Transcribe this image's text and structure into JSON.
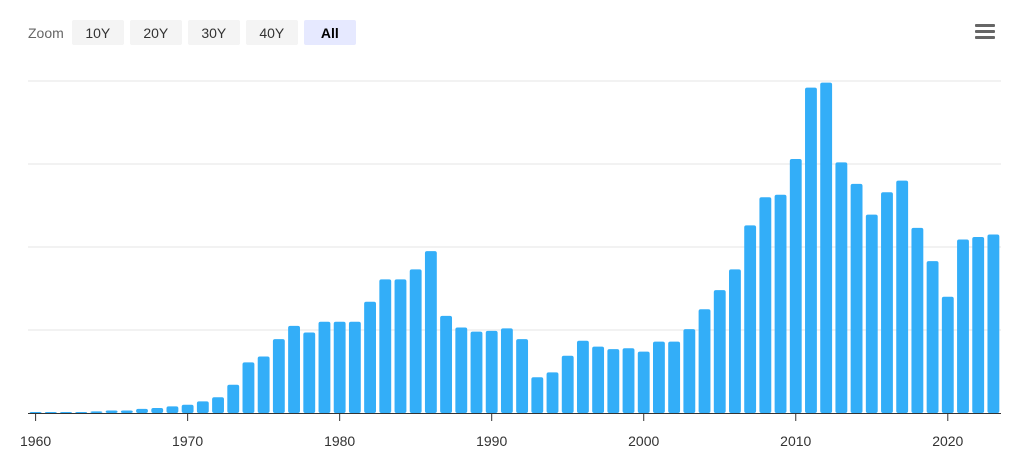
{
  "toolbar": {
    "zoom_label": "Zoom",
    "buttons": [
      {
        "label": "10Y",
        "active": false
      },
      {
        "label": "20Y",
        "active": false
      },
      {
        "label": "30Y",
        "active": false
      },
      {
        "label": "40Y",
        "active": false
      },
      {
        "label": "All",
        "active": true
      }
    ],
    "menu_icon": "hamburger-menu-icon"
  },
  "chart_data": {
    "type": "bar",
    "title": "",
    "xlabel": "",
    "ylabel": "",
    "x_ticks": [
      1960,
      1970,
      1980,
      1990,
      2000,
      2010,
      2020
    ],
    "x_range": [
      1959.5,
      2023.5
    ],
    "y_range": [
      0,
      4
    ],
    "grid": "horizontal",
    "gridlines": [
      1,
      2,
      3,
      4
    ],
    "bar_color": "#33aef8",
    "categories": [
      1960,
      1961,
      1962,
      1963,
      1964,
      1965,
      1966,
      1967,
      1968,
      1969,
      1970,
      1971,
      1972,
      1973,
      1974,
      1975,
      1976,
      1977,
      1978,
      1979,
      1980,
      1981,
      1982,
      1983,
      1984,
      1985,
      1986,
      1987,
      1988,
      1989,
      1990,
      1991,
      1992,
      1993,
      1994,
      1995,
      1996,
      1997,
      1998,
      1999,
      2000,
      2001,
      2002,
      2003,
      2004,
      2005,
      2006,
      2007,
      2008,
      2009,
      2010,
      2011,
      2012,
      2013,
      2014,
      2015,
      2016,
      2017,
      2018,
      2019,
      2020,
      2021,
      2022,
      2023
    ],
    "values": [
      0.01,
      0.01,
      0.01,
      0.01,
      0.02,
      0.03,
      0.03,
      0.05,
      0.06,
      0.08,
      0.1,
      0.14,
      0.19,
      0.34,
      0.61,
      0.68,
      0.89,
      1.05,
      0.97,
      1.1,
      1.1,
      1.1,
      1.34,
      1.61,
      1.61,
      1.73,
      1.95,
      1.17,
      1.03,
      0.98,
      0.99,
      1.02,
      0.89,
      0.43,
      0.49,
      0.69,
      0.87,
      0.8,
      0.77,
      0.78,
      0.74,
      0.86,
      0.86,
      1.01,
      1.25,
      1.48,
      1.73,
      2.26,
      2.6,
      2.63,
      3.06,
      3.92,
      3.98,
      3.02,
      2.76,
      2.39,
      2.66,
      2.8,
      2.23,
      1.83,
      1.4,
      2.09,
      2.12,
      2.15
    ]
  }
}
